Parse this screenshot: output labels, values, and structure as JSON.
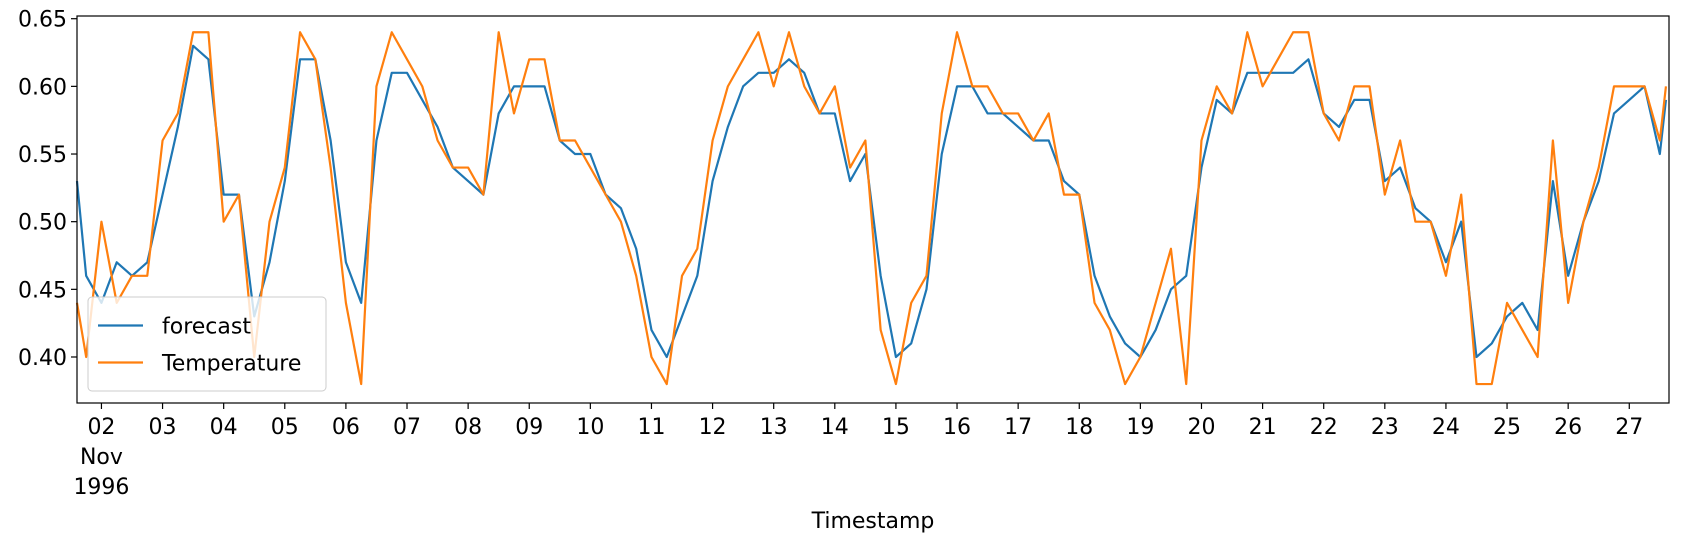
{
  "chart_data": {
    "type": "line",
    "xlabel": "Timestamp",
    "x_month_label": "Nov",
    "x_year_label": "1996",
    "xlim": [
      1.6,
      27.65
    ],
    "xticks": [
      {
        "value": 2,
        "label": "02"
      },
      {
        "value": 3,
        "label": "03"
      },
      {
        "value": 4,
        "label": "04"
      },
      {
        "value": 5,
        "label": "05"
      },
      {
        "value": 6,
        "label": "06"
      },
      {
        "value": 7,
        "label": "07"
      },
      {
        "value": 8,
        "label": "08"
      },
      {
        "value": 9,
        "label": "09"
      },
      {
        "value": 10,
        "label": "10"
      },
      {
        "value": 11,
        "label": "11"
      },
      {
        "value": 12,
        "label": "12"
      },
      {
        "value": 13,
        "label": "13"
      },
      {
        "value": 14,
        "label": "14"
      },
      {
        "value": 15,
        "label": "15"
      },
      {
        "value": 16,
        "label": "16"
      },
      {
        "value": 17,
        "label": "17"
      },
      {
        "value": 18,
        "label": "18"
      },
      {
        "value": 19,
        "label": "19"
      },
      {
        "value": 20,
        "label": "20"
      },
      {
        "value": 21,
        "label": "21"
      },
      {
        "value": 22,
        "label": "22"
      },
      {
        "value": 23,
        "label": "23"
      },
      {
        "value": 24,
        "label": "24"
      },
      {
        "value": 25,
        "label": "25"
      },
      {
        "value": 26,
        "label": "26"
      },
      {
        "value": 27,
        "label": "27"
      }
    ],
    "ylim": [
      0.366,
      0.652
    ],
    "yticks": [
      {
        "value": 0.4,
        "label": "0.40"
      },
      {
        "value": 0.45,
        "label": "0.45"
      },
      {
        "value": 0.5,
        "label": "0.50"
      },
      {
        "value": 0.55,
        "label": "0.55"
      },
      {
        "value": 0.6,
        "label": "0.60"
      },
      {
        "value": 0.65,
        "label": "0.65"
      }
    ],
    "legend": "lower left",
    "x": [
      1.6,
      1.75,
      2,
      2.25,
      2.5,
      2.75,
      3,
      3.25,
      3.5,
      3.75,
      4,
      4.25,
      4.5,
      4.75,
      5,
      5.25,
      5.5,
      5.75,
      6,
      6.25,
      6.5,
      6.75,
      7,
      7.25,
      7.5,
      7.75,
      8,
      8.25,
      8.5,
      8.75,
      9,
      9.25,
      9.5,
      9.75,
      10,
      10.25,
      10.5,
      10.75,
      11,
      11.25,
      11.5,
      11.75,
      12,
      12.25,
      12.5,
      12.75,
      13,
      13.25,
      13.5,
      13.75,
      14,
      14.25,
      14.5,
      14.75,
      15,
      15.25,
      15.5,
      15.75,
      16,
      16.25,
      16.5,
      16.75,
      17,
      17.25,
      17.5,
      17.75,
      18,
      18.25,
      18.5,
      18.75,
      19,
      19.25,
      19.5,
      19.75,
      20,
      20.25,
      20.5,
      20.75,
      21,
      21.25,
      21.5,
      21.75,
      22,
      22.25,
      22.5,
      22.75,
      23,
      23.25,
      23.5,
      23.75,
      24,
      24.25,
      24.5,
      24.75,
      25,
      25.25,
      25.5,
      25.75,
      26,
      26.25,
      26.5,
      26.75,
      27,
      27.25,
      27.5,
      27.6
    ],
    "series": [
      {
        "name": "forecast",
        "color": "#1f77b4",
        "values": [
          0.53,
          0.46,
          0.44,
          0.47,
          0.46,
          0.47,
          0.52,
          0.57,
          0.63,
          0.62,
          0.52,
          0.52,
          0.43,
          0.47,
          0.53,
          0.62,
          0.62,
          0.56,
          0.47,
          0.44,
          0.56,
          0.61,
          0.61,
          0.59,
          0.57,
          0.54,
          0.53,
          0.52,
          0.58,
          0.6,
          0.6,
          0.6,
          0.56,
          0.55,
          0.55,
          0.52,
          0.51,
          0.48,
          0.42,
          0.4,
          0.43,
          0.46,
          0.53,
          0.57,
          0.6,
          0.61,
          0.61,
          0.62,
          0.61,
          0.58,
          0.58,
          0.53,
          0.55,
          0.46,
          0.4,
          0.41,
          0.45,
          0.55,
          0.6,
          0.6,
          0.58,
          0.58,
          0.57,
          0.56,
          0.56,
          0.53,
          0.52,
          0.46,
          0.43,
          0.41,
          0.4,
          0.42,
          0.45,
          0.46,
          0.54,
          0.59,
          0.58,
          0.61,
          0.61,
          0.61,
          0.61,
          0.62,
          0.58,
          0.57,
          0.59,
          0.59,
          0.53,
          0.54,
          0.51,
          0.5,
          0.47,
          0.5,
          0.4,
          0.41,
          0.43,
          0.44,
          0.42,
          0.53,
          0.46,
          0.5,
          0.53,
          0.58,
          0.59,
          0.6,
          0.55,
          0.59
        ]
      },
      {
        "name": "Temperature",
        "color": "#ff7f0e",
        "values": [
          0.44,
          0.4,
          0.5,
          0.44,
          0.46,
          0.46,
          0.56,
          0.58,
          0.64,
          0.64,
          0.5,
          0.52,
          0.4,
          0.5,
          0.54,
          0.64,
          0.62,
          0.54,
          0.44,
          0.38,
          0.6,
          0.64,
          0.62,
          0.6,
          0.56,
          0.54,
          0.54,
          0.52,
          0.64,
          0.58,
          0.62,
          0.62,
          0.56,
          0.56,
          0.54,
          0.52,
          0.5,
          0.46,
          0.4,
          0.38,
          0.46,
          0.48,
          0.56,
          0.6,
          0.62,
          0.64,
          0.6,
          0.64,
          0.6,
          0.58,
          0.6,
          0.54,
          0.56,
          0.42,
          0.38,
          0.44,
          0.46,
          0.58,
          0.64,
          0.6,
          0.6,
          0.58,
          0.58,
          0.56,
          0.58,
          0.52,
          0.52,
          0.44,
          0.42,
          0.38,
          0.4,
          0.44,
          0.48,
          0.38,
          0.56,
          0.6,
          0.58,
          0.64,
          0.6,
          0.62,
          0.64,
          0.64,
          0.58,
          0.56,
          0.6,
          0.6,
          0.52,
          0.56,
          0.5,
          0.5,
          0.46,
          0.52,
          0.38,
          0.38,
          0.44,
          0.42,
          0.4,
          0.56,
          0.44,
          0.5,
          0.54,
          0.6,
          0.6,
          0.6,
          0.56,
          0.6
        ]
      }
    ]
  }
}
